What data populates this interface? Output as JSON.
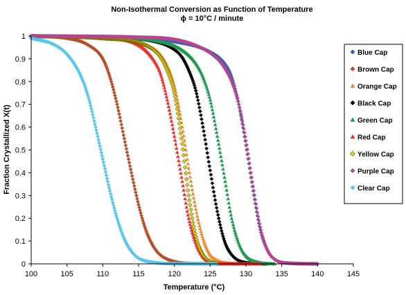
{
  "chart_data": {
    "type": "scatter",
    "title": "Non-Isothermal Conversion as Function of Temperature",
    "subtitle": "ϕ = 10°C / minute",
    "xlabel": "Temperature (°C)",
    "ylabel": "Fraction Crystallized X(t)",
    "xlim": [
      100,
      145
    ],
    "ylim": [
      0,
      1
    ],
    "x_ticks": [
      "100",
      "105",
      "110",
      "115",
      "120",
      "125",
      "130",
      "135",
      "140",
      "145"
    ],
    "y_ticks": [
      "0",
      "0.1",
      "0.2",
      "0.3",
      "0.4",
      "0.5",
      "0.6",
      "0.7",
      "0.8",
      "0.9",
      "1"
    ],
    "legend_position": "right",
    "grid": false,
    "series": [
      {
        "name": "Blue Cap",
        "color": "#3F5FB5",
        "marker": "diamond",
        "x_start": 100,
        "x_end": 140,
        "x": [
          100,
          110,
          120,
          125,
          127,
          128,
          129,
          130,
          131,
          132,
          133,
          134,
          136,
          140
        ],
        "y": [
          1.0,
          0.995,
          0.975,
          0.93,
          0.88,
          0.82,
          0.7,
          0.52,
          0.32,
          0.15,
          0.06,
          0.02,
          0.003,
          0.0
        ]
      },
      {
        "name": "Brown Cap",
        "color": "#B7502A",
        "marker": "diamond",
        "x_start": 100,
        "x_end": 129,
        "x": [
          100,
          105,
          108,
          110,
          111,
          112,
          113,
          114,
          115,
          116,
          117,
          118,
          120,
          123,
          129
        ],
        "y": [
          1.0,
          0.99,
          0.96,
          0.9,
          0.82,
          0.7,
          0.55,
          0.4,
          0.26,
          0.15,
          0.08,
          0.04,
          0.01,
          0.001,
          0.0
        ]
      },
      {
        "name": "Orange Cap",
        "color": "#F38A28",
        "marker": "triangle",
        "x_start": 100,
        "x_end": 131,
        "x": [
          100,
          110,
          116,
          118,
          119,
          120,
          121,
          122,
          123,
          124,
          125,
          126,
          128,
          131
        ],
        "y": [
          1.0,
          0.99,
          0.96,
          0.92,
          0.87,
          0.78,
          0.62,
          0.42,
          0.24,
          0.11,
          0.04,
          0.015,
          0.002,
          0.0
        ]
      },
      {
        "name": "Black Cap",
        "color": "#000000",
        "marker": "diamond",
        "x_start": 100,
        "x_end": 133,
        "x": [
          100,
          110,
          118,
          120,
          121,
          122,
          123,
          124,
          125,
          126,
          127,
          128,
          130,
          133
        ],
        "y": [
          1.0,
          0.995,
          0.97,
          0.94,
          0.91,
          0.85,
          0.76,
          0.6,
          0.41,
          0.23,
          0.1,
          0.04,
          0.005,
          0.0
        ]
      },
      {
        "name": "Green Cap",
        "color": "#1F9A4E",
        "marker": "triangle",
        "x_start": 100,
        "x_end": 134,
        "x": [
          100,
          110,
          118,
          121,
          123,
          124,
          125,
          126,
          127,
          128,
          129,
          130,
          132,
          134
        ],
        "y": [
          1.0,
          0.995,
          0.975,
          0.94,
          0.88,
          0.82,
          0.72,
          0.56,
          0.38,
          0.2,
          0.09,
          0.035,
          0.005,
          0.0
        ]
      },
      {
        "name": "Red Cap",
        "color": "#F0302A",
        "marker": "triangle",
        "x_start": 100,
        "x_end": 132,
        "x": [
          100,
          110,
          115,
          117,
          118,
          119,
          120,
          121,
          122,
          123,
          124,
          125,
          127,
          132
        ],
        "y": [
          1.0,
          0.99,
          0.96,
          0.9,
          0.84,
          0.72,
          0.56,
          0.38,
          0.2,
          0.09,
          0.03,
          0.01,
          0.001,
          0.0
        ]
      },
      {
        "name": "Yellow Cap",
        "color": "#E3D320",
        "marker": "diamond",
        "x_start": 100,
        "x_end": 126,
        "x": [
          100,
          110,
          116,
          118,
          119,
          120,
          121,
          122,
          123,
          124,
          125,
          126
        ],
        "y": [
          1.0,
          0.99,
          0.96,
          0.91,
          0.85,
          0.75,
          0.55,
          0.3,
          0.12,
          0.04,
          0.01,
          0.0
        ]
      },
      {
        "name": "Purple Cap",
        "color": "#B8458F",
        "marker": "diamond",
        "x_start": 100,
        "x_end": 140,
        "x": [
          100,
          115,
          122,
          126,
          127,
          128,
          129,
          130,
          131,
          132,
          133,
          134,
          136,
          140
        ],
        "y": [
          1.0,
          0.995,
          0.97,
          0.9,
          0.86,
          0.8,
          0.7,
          0.54,
          0.34,
          0.16,
          0.06,
          0.02,
          0.003,
          0.0
        ]
      },
      {
        "name": "Clear Cap",
        "color": "#58C7EA",
        "marker": "diamond",
        "x_start": 100,
        "x_end": 126,
        "x": [
          100,
          103,
          105,
          107,
          108,
          109,
          110,
          111,
          112,
          113,
          114,
          115,
          117,
          120,
          126
        ],
        "y": [
          0.99,
          0.965,
          0.92,
          0.82,
          0.73,
          0.6,
          0.46,
          0.32,
          0.2,
          0.11,
          0.055,
          0.025,
          0.007,
          0.001,
          0.0
        ]
      }
    ]
  }
}
